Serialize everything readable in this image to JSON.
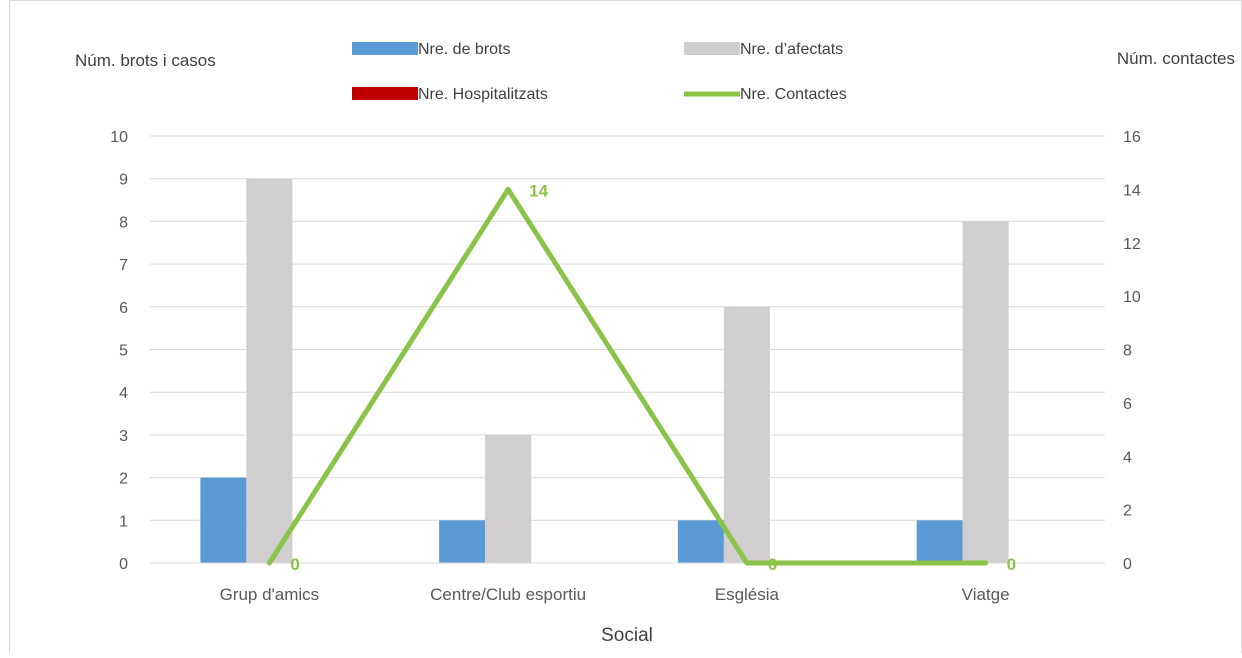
{
  "chart_data": {
    "type": "bar",
    "title": "",
    "xlabel": "Social",
    "ylabel": "Núm. brots i casos",
    "y2label": "Núm. contactes",
    "categories": [
      "Grup d'amics",
      "Centre/Club esportiu",
      "Església",
      "Viatge"
    ],
    "ylim": [
      0,
      10
    ],
    "y2lim": [
      0,
      16
    ],
    "yticks": [
      "0",
      "1",
      "2",
      "3",
      "4",
      "5",
      "6",
      "7",
      "8",
      "9",
      "10"
    ],
    "y2ticks": [
      "0",
      "2",
      "4",
      "6",
      "8",
      "10",
      "12",
      "14",
      "16"
    ],
    "grid": true,
    "legend_position": "top",
    "series": [
      {
        "name": "Nre. de brots",
        "type": "bar",
        "axis": "left",
        "color": "#5b9bd5",
        "values": [
          2,
          1,
          1,
          1
        ]
      },
      {
        "name": "Nre. d’afectats",
        "type": "bar",
        "axis": "left",
        "color": "#d0cece",
        "values": [
          9,
          3,
          6,
          8
        ]
      },
      {
        "name": "Nre. Hospitalitzats",
        "type": "bar",
        "axis": "left",
        "color": "#c00000",
        "values": [
          0,
          0,
          0,
          0
        ]
      },
      {
        "name": "Nre. Contactes",
        "type": "line",
        "axis": "right",
        "color": "#8bc34a",
        "values": [
          0,
          14,
          0,
          0
        ],
        "data_labels": [
          "0",
          "14",
          "0",
          "0"
        ]
      }
    ]
  }
}
